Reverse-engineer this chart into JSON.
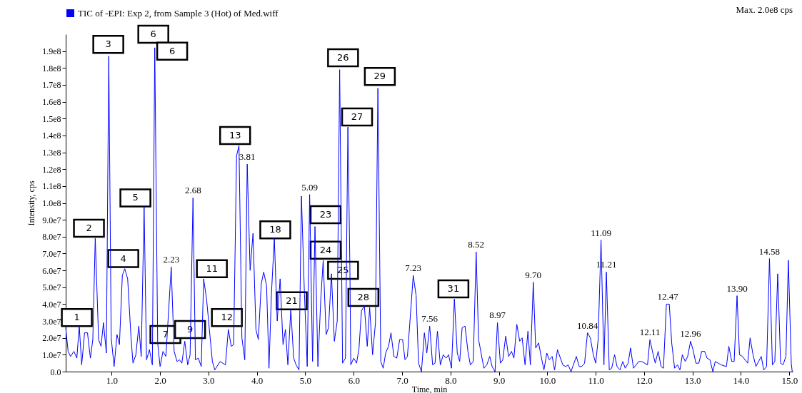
{
  "chart_data": {
    "type": "line",
    "xlabel": "Time, min",
    "ylabel": "Intensity, cps",
    "legend": "top left",
    "xlim": [
      0.05,
      15.07
    ],
    "ylim": [
      0,
      200000000.0
    ],
    "xticks": [
      {
        "value": 1,
        "label": "1.0"
      },
      {
        "value": 2,
        "label": "2.0"
      },
      {
        "value": 3,
        "label": "3.0"
      },
      {
        "value": 4,
        "label": "4.0"
      },
      {
        "value": 5,
        "label": "5.0"
      },
      {
        "value": 6,
        "label": "6.0"
      },
      {
        "value": 7,
        "label": "7.0"
      },
      {
        "value": 8,
        "label": "8.0"
      },
      {
        "value": 9,
        "label": "9.0"
      },
      {
        "value": 10,
        "label": "10.0"
      },
      {
        "value": 11,
        "label": "11.0"
      },
      {
        "value": 12,
        "label": "12.0"
      },
      {
        "value": 13,
        "label": "13.0"
      },
      {
        "value": 14,
        "label": "14.0"
      },
      {
        "value": 15,
        "label": "15.0"
      }
    ],
    "yticks": [
      {
        "value": 0,
        "label": "0.0"
      },
      {
        "value": 10000000.0,
        "label": "1.0e7"
      },
      {
        "value": 20000000.0,
        "label": "2.0e7"
      },
      {
        "value": 30000000.0,
        "label": "3.0e7"
      },
      {
        "value": 40000000.0,
        "label": "4.0e7"
      },
      {
        "value": 50000000.0,
        "label": "5.0e7"
      },
      {
        "value": 60000000.0,
        "label": "6.0e7"
      },
      {
        "value": 70000000.0,
        "label": "7.0e7"
      },
      {
        "value": 80000000.0,
        "label": "8.0e7"
      },
      {
        "value": 90000000.0,
        "label": "9.0e7"
      },
      {
        "value": 100000000.0,
        "label": "1.0e8"
      },
      {
        "value": 110000000.0,
        "label": "1.1e8"
      },
      {
        "value": 120000000.0,
        "label": "1.2e8"
      },
      {
        "value": 130000000.0,
        "label": "1.3e8"
      },
      {
        "value": 140000000.0,
        "label": "1.4e8"
      },
      {
        "value": 150000000.0,
        "label": "1.5e8"
      },
      {
        "value": 160000000.0,
        "label": "1.6e8"
      },
      {
        "value": 170000000.0,
        "label": "1.7e8"
      },
      {
        "value": 180000000.0,
        "label": "1.8e8"
      },
      {
        "value": 190000000.0,
        "label": "1.9e8"
      }
    ],
    "x": [
      0.05,
      0.1,
      0.15,
      0.22,
      0.28,
      0.33,
      0.38,
      0.44,
      0.5,
      0.56,
      0.61,
      0.66,
      0.73,
      0.78,
      0.83,
      0.89,
      0.94,
      0.99,
      1.05,
      1.11,
      1.16,
      1.22,
      1.27,
      1.33,
      1.4,
      1.44,
      1.5,
      1.56,
      1.61,
      1.67,
      1.72,
      1.78,
      1.84,
      1.89,
      1.95,
      2.0,
      2.06,
      2.12,
      2.23,
      2.29,
      2.35,
      2.4,
      2.45,
      2.51,
      2.57,
      2.62,
      2.68,
      2.73,
      2.79,
      2.85,
      2.9,
      2.96,
      3.08,
      3.13,
      3.24,
      3.35,
      3.41,
      3.47,
      3.52,
      3.58,
      3.63,
      3.69,
      3.75,
      3.8,
      3.86,
      3.92,
      3.98,
      4.03,
      4.09,
      4.14,
      4.2,
      4.25,
      4.3,
      4.36,
      4.42,
      4.48,
      4.54,
      4.59,
      4.64,
      4.7,
      4.76,
      4.81,
      4.87,
      4.92,
      4.98,
      5.04,
      5.09,
      5.15,
      5.2,
      5.26,
      5.32,
      5.37,
      5.43,
      5.48,
      5.54,
      5.6,
      5.66,
      5.71,
      5.77,
      5.83,
      5.88,
      5.92,
      5.94,
      6.0,
      6.06,
      6.11,
      6.16,
      6.22,
      6.28,
      6.33,
      6.39,
      6.45,
      6.5,
      6.56,
      6.61,
      6.66,
      6.72,
      6.77,
      6.83,
      6.89,
      6.95,
      7.01,
      7.06,
      7.11,
      7.23,
      7.29,
      7.34,
      7.4,
      7.46,
      7.51,
      7.57,
      7.63,
      7.68,
      7.73,
      7.79,
      7.85,
      7.91,
      7.96,
      8.02,
      8.08,
      8.14,
      8.19,
      8.24,
      8.3,
      8.36,
      8.41,
      8.47,
      8.53,
      8.58,
      8.69,
      8.75,
      8.81,
      8.86,
      8.92,
      8.97,
      9.03,
      9.08,
      9.14,
      9.2,
      9.26,
      9.31,
      9.37,
      9.43,
      9.48,
      9.54,
      9.6,
      9.65,
      9.71,
      9.76,
      9.82,
      9.88,
      9.93,
      9.99,
      10.04,
      10.1,
      10.15,
      10.21,
      10.32,
      10.38,
      10.43,
      10.49,
      10.6,
      10.66,
      10.71,
      10.77,
      10.83,
      10.89,
      10.95,
      11.0,
      11.05,
      11.11,
      11.17,
      11.22,
      11.28,
      11.33,
      11.39,
      11.44,
      11.5,
      11.56,
      11.61,
      11.67,
      11.72,
      11.78,
      11.89,
      11.95,
      12.07,
      12.12,
      12.18,
      12.23,
      12.29,
      12.35,
      12.4,
      12.46,
      12.52,
      12.57,
      12.63,
      12.69,
      12.74,
      12.79,
      12.85,
      12.9,
      12.96,
      13.01,
      13.07,
      13.13,
      13.19,
      13.25,
      13.3,
      13.36,
      13.42,
      13.47,
      13.53,
      13.59,
      13.7,
      13.75,
      13.81,
      13.86,
      13.92,
      13.97,
      14.03,
      14.14,
      14.19,
      14.25,
      14.31,
      14.42,
      14.47,
      14.53,
      14.59,
      14.65,
      14.7,
      14.76,
      14.82,
      14.87,
      14.93,
      14.98,
      15.04,
      15.06
    ],
    "series": [
      {
        "name": "TIC of -EPI: Exp 2, from Sample 3 (Hot) of Med.wiff",
        "color": "#0000ff",
        "values": [
          26000000.0,
          12000000.0,
          9000000.0,
          12000000.0,
          8000000.0,
          27000000.0,
          4000000.0,
          23000000.0,
          23000000.0,
          8000000.0,
          19000000.0,
          79000000.0,
          19000000.0,
          15000000.0,
          29000000.0,
          11000000.0,
          187000000.0,
          20000000.0,
          3000000.0,
          22000000.0,
          16000000.0,
          57000000.0,
          61000000.0,
          55000000.0,
          20000000.0,
          5000000.0,
          10000000.0,
          27000000.0,
          9000000.0,
          98000000.0,
          7000000.0,
          13000000.0,
          4000000.0,
          192000000.0,
          17000000.0,
          3000000.0,
          12000000.0,
          9000000.0,
          62000000.0,
          12000000.0,
          6000000.0,
          7000000.0,
          5000000.0,
          18000000.0,
          4000000.0,
          10000000.0,
          103000000.0,
          7000000.0,
          8000000.0,
          3000000.0,
          55000000.0,
          43000000.0,
          6000000.0,
          1000000.0,
          6000000.0,
          4000000.0,
          25000000.0,
          15000000.0,
          16000000.0,
          128000000.0,
          134000000.0,
          20000000.0,
          7000000.0,
          123000000.0,
          60000000.0,
          82000000.0,
          25000000.0,
          19000000.0,
          52000000.0,
          59000000.0,
          51000000.0,
          2000000.0,
          46000000.0,
          79000000.0,
          30000000.0,
          55000000.0,
          16000000.0,
          25000000.0,
          4000000.0,
          37000000.0,
          8000000.0,
          4000000.0,
          1000000.0,
          104000000.0,
          48000000.0,
          3000000.0,
          105000000.0,
          6000000.0,
          86000000.0,
          3000000.0,
          43000000.0,
          66000000.0,
          22000000.0,
          26000000.0,
          58000000.0,
          18000000.0,
          30000000.0,
          179000000.0,
          5000000.0,
          8000000.0,
          145000000.0,
          65000000.0,
          4000000.0,
          8000000.0,
          5000000.0,
          14000000.0,
          36000000.0,
          39000000.0,
          15000000.0,
          38000000.0,
          10000000.0,
          29000000.0,
          168000000.0,
          6000000.0,
          2000000.0,
          11000000.0,
          15000000.0,
          23000000.0,
          9000000.0,
          8000000.0,
          19000000.0,
          19000000.0,
          7000000.0,
          9000000.0,
          57000000.0,
          45000000.0,
          5000000.0,
          0,
          23000000.0,
          11000000.0,
          27000000.0,
          4000000.0,
          5000000.0,
          24000000.0,
          4000000.0,
          10000000.0,
          8000000.0,
          10000000.0,
          2000000.0,
          43000000.0,
          11000000.0,
          6000000.0,
          26000000.0,
          27000000.0,
          12000000.0,
          4000000.0,
          6000000.0,
          71000000.0,
          19000000.0,
          2000000.0,
          4000000.0,
          9000000.0,
          3000000.0,
          0,
          29000000.0,
          5000000.0,
          7000000.0,
          21000000.0,
          9000000.0,
          12000000.0,
          8000000.0,
          28000000.0,
          18000000.0,
          20000000.0,
          4000000.0,
          24000000.0,
          4000000.0,
          53000000.0,
          14000000.0,
          17000000.0,
          8000000.0,
          1000000.0,
          11000000.0,
          7000000.0,
          9000000.0,
          1000000.0,
          13000000.0,
          4000000.0,
          3000000.0,
          4000000.0,
          0,
          9000000.0,
          3000000.0,
          3000000.0,
          5000000.0,
          23000000.0,
          20000000.0,
          10000000.0,
          5000000.0,
          19000000.0,
          78000000.0,
          4000000.0,
          59000000.0,
          1000000.0,
          2000000.0,
          10000000.0,
          3000000.0,
          1000000.0,
          6000000.0,
          2000000.0,
          5000000.0,
          14000000.0,
          2000000.0,
          6000000.0,
          6000000.0,
          4000000.0,
          19000000.0,
          11000000.0,
          5000000.0,
          12000000.0,
          3000000.0,
          2000000.0,
          40000000.0,
          40000000.0,
          17000000.0,
          2000000.0,
          4000000.0,
          1000000.0,
          10000000.0,
          6000000.0,
          9000000.0,
          18000000.0,
          13000000.0,
          5000000.0,
          5000000.0,
          12000000.0,
          12000000.0,
          8000000.0,
          7000000.0,
          0,
          6000000.0,
          5000000.0,
          4000000.0,
          3000000.0,
          15000000.0,
          6000000.0,
          6000000.0,
          45000000.0,
          10000000.0,
          9000000.0,
          5000000.0,
          20000000.0,
          10000000.0,
          3000000.0,
          9000000.0,
          1000000.0,
          3000000.0,
          67000000.0,
          4000000.0,
          6000000.0,
          58000000.0,
          5000000.0,
          4000000.0,
          9000000.0,
          66000000.0,
          5000000.0,
          0
        ]
      }
    ],
    "annotations": [
      "Max. 2.0e8 cps",
      {
        "text": "1",
        "x": 0.28,
        "y": 32000000.0
      },
      {
        "text": "2",
        "x": 0.53,
        "y": 85000000.0
      },
      {
        "text": "3",
        "x": 0.93,
        "y": 194000000.0
      },
      {
        "text": "4",
        "x": 1.24,
        "y": 67000000.0
      },
      {
        "text": "5",
        "x": 1.49,
        "y": 103000000.0
      },
      {
        "text": "6",
        "x": 1.86,
        "y": 200000000.0
      },
      {
        "text": "6",
        "x": 2.25,
        "y": 190000000.0
      },
      {
        "text": "7",
        "x": 2.11,
        "y": 22000000.0
      },
      {
        "text": "9",
        "x": 2.62,
        "y": 25000000.0
      },
      {
        "text": "11",
        "x": 3.07,
        "y": 61000000.0
      },
      {
        "text": "12",
        "x": 3.38,
        "y": 32000000.0
      },
      {
        "text": "13",
        "x": 3.55,
        "y": 140000000.0
      },
      {
        "text": "18",
        "x": 4.38,
        "y": 84000000.0
      },
      {
        "text": "21",
        "x": 4.72,
        "y": 42000000.0
      },
      {
        "text": "23",
        "x": 5.42,
        "y": 93000000.0
      },
      {
        "text": "24",
        "x": 5.42,
        "y": 72000000.0
      },
      {
        "text": "25",
        "x": 5.78,
        "y": 60000000.0
      },
      {
        "text": "26",
        "x": 5.78,
        "y": 186000000.0
      },
      {
        "text": "27",
        "x": 6.07,
        "y": 151000000.0
      },
      {
        "text": "28",
        "x": 6.2,
        "y": 44000000.0
      },
      {
        "text": "29",
        "x": 6.54,
        "y": 175000000.0
      },
      {
        "text": "31",
        "x": 8.06,
        "y": 49000000.0
      },
      {
        "text": "2.23",
        "x": 2.23,
        "y": 62000000.0
      },
      {
        "text": "2.68",
        "x": 2.68,
        "y": 103000000.0
      },
      {
        "text": "3.81",
        "x": 3.8,
        "y": 123000000.0
      },
      {
        "text": "5.09",
        "x": 5.09,
        "y": 105000000.0
      },
      {
        "text": "7.23",
        "x": 7.23,
        "y": 57000000.0
      },
      {
        "text": "7.56",
        "x": 7.57,
        "y": 27000000.0
      },
      {
        "text": "8.52",
        "x": 8.53,
        "y": 71000000.0
      },
      {
        "text": "8.97",
        "x": 8.97,
        "y": 29000000.0
      },
      {
        "text": "9.70",
        "x": 9.71,
        "y": 53000000.0
      },
      {
        "text": "10.84",
        "x": 10.83,
        "y": 23000000.0
      },
      {
        "text": "11.09",
        "x": 11.11,
        "y": 78000000.0
      },
      {
        "text": "11.21",
        "x": 11.22,
        "y": 59000000.0
      },
      {
        "text": "12.11",
        "x": 12.12,
        "y": 19000000.0
      },
      {
        "text": "12.47",
        "x": 12.49,
        "y": 40000000.0
      },
      {
        "text": "12.96",
        "x": 12.96,
        "y": 18000000.0
      },
      {
        "text": "13.90",
        "x": 13.92,
        "y": 45000000.0
      },
      {
        "text": "14.58",
        "x": 14.59,
        "y": 67000000.0
      }
    ]
  }
}
